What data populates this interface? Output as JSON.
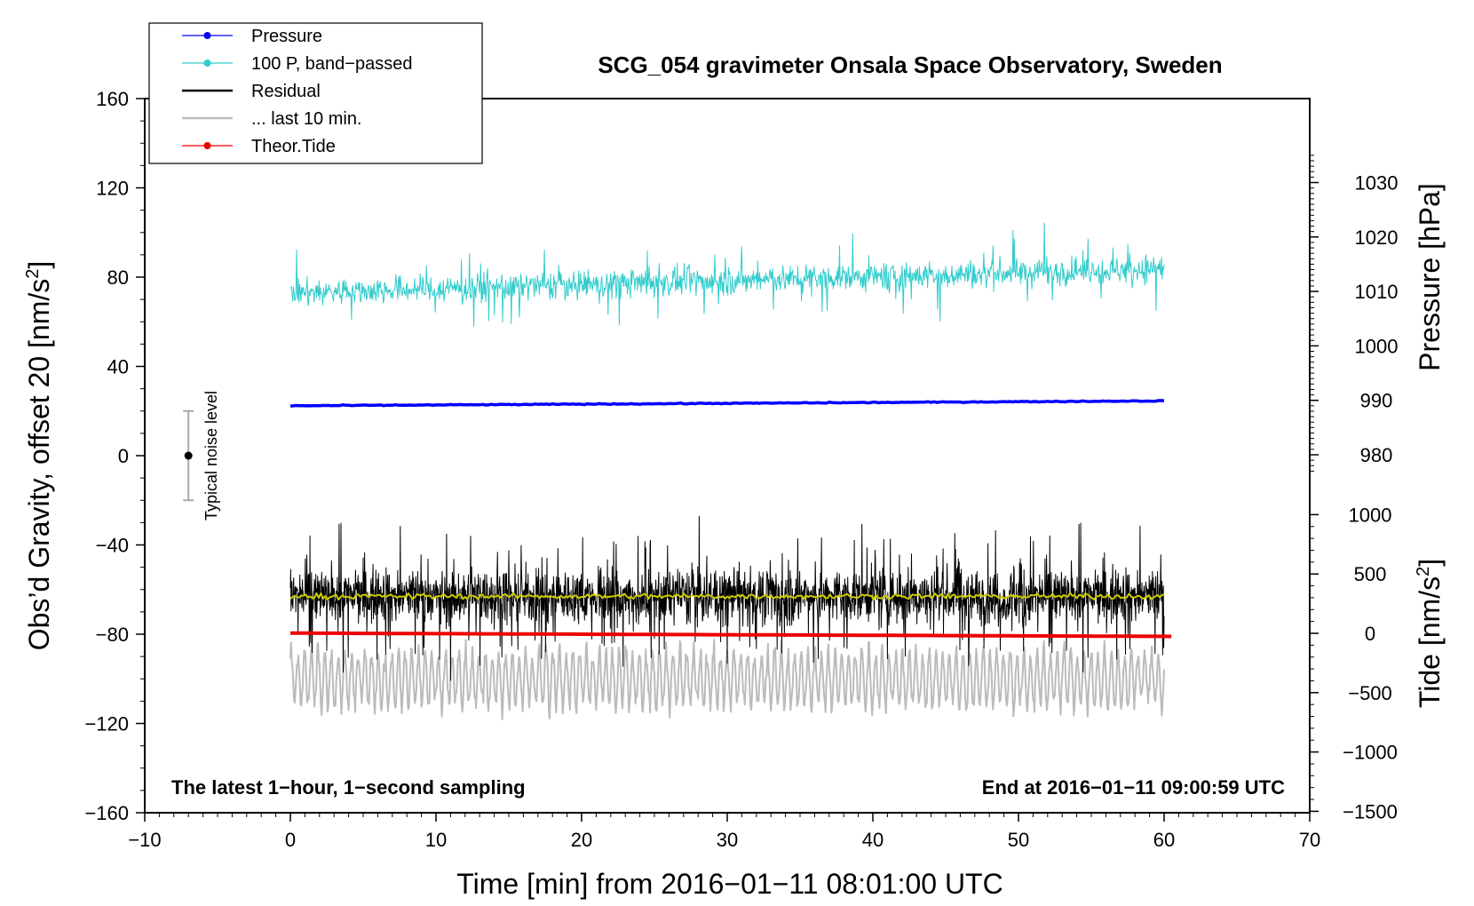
{
  "chart_data": {
    "type": "line",
    "title": "SCG_054 gravimeter Onsala Space Observatory, Sweden",
    "xlabel": "Time [min] from 2016−01−11 08:01:00 UTC",
    "ylabel_left": "Obs’d Gravity, offset 20 [nm/s",
    "ylabel_right_pressure": "Pressure [hPa]",
    "ylabel_right_tide": "Tide [nm/s",
    "unit_superscript": "2",
    "unit_close": "]",
    "xlim": [
      -10,
      70
    ],
    "ylim_left": [
      -160,
      160
    ],
    "x_ticks": [
      "−10",
      "0",
      "10",
      "20",
      "30",
      "40",
      "50",
      "60",
      "70"
    ],
    "y_ticks_left": [
      "160",
      "120",
      "80",
      "40",
      "0",
      "−40",
      "−80",
      "−120",
      "−160"
    ],
    "pressure_ticks": [
      "1030",
      "1020",
      "1010",
      "1000",
      "990",
      "980"
    ],
    "tide_ticks": [
      "1000",
      "500",
      "0",
      "−500",
      "−1000",
      "−1500"
    ],
    "annotation_left": "The latest 1−hour, 1−second sampling",
    "annotation_right": "End at 2016−01−11 09:00:59 UTC",
    "noise_label": "Typical noise level",
    "noise_bar": {
      "x": -7,
      "center": 0,
      "low": -20,
      "high": 20
    },
    "legend": [
      {
        "label": "Pressure",
        "color": "#0000ff",
        "marker": true
      },
      {
        "label": "100 P, band−passed",
        "color": "#33cccc",
        "marker": true
      },
      {
        "label": "Residual",
        "color": "#000000",
        "marker": false
      },
      {
        "label": "... last 10 min.",
        "color": "#bbbbbb",
        "marker": false
      },
      {
        "label": "Theor.Tide",
        "color": "#ee0000",
        "marker": true
      }
    ],
    "series": [
      {
        "name": "Pressure",
        "color": "#0000ff",
        "axis": "pressure_hPa",
        "x_range": [
          0,
          60
        ],
        "start": 989.0,
        "end": 989.9,
        "approx": true
      },
      {
        "name": "100 P, band−passed",
        "color": "#33cccc",
        "axis": "left",
        "x_range": [
          0,
          60
        ],
        "mean_start": 73,
        "mean_end": 84,
        "amplitude": 10,
        "approx": true
      },
      {
        "name": "Residual",
        "color": "#000000",
        "axis": "left",
        "x_range": [
          0,
          60
        ],
        "mean": -63,
        "amplitude": 16,
        "approx": true
      },
      {
        "name": "... last 10 min.",
        "color": "#bbbbbb",
        "axis": "left",
        "x_range": [
          0,
          60
        ],
        "mean": -100,
        "amplitude": 14,
        "approx": true
      },
      {
        "name": "Theor.Tide",
        "color": "#ee0000",
        "axis": "left",
        "x_range": [
          0,
          60.5
        ],
        "start": -79.5,
        "end": -81.0,
        "approx": true
      },
      {
        "color": "#cccc00",
        "axis": "left",
        "x_range": [
          0,
          60
        ],
        "mean": -63,
        "approx": true
      }
    ]
  }
}
